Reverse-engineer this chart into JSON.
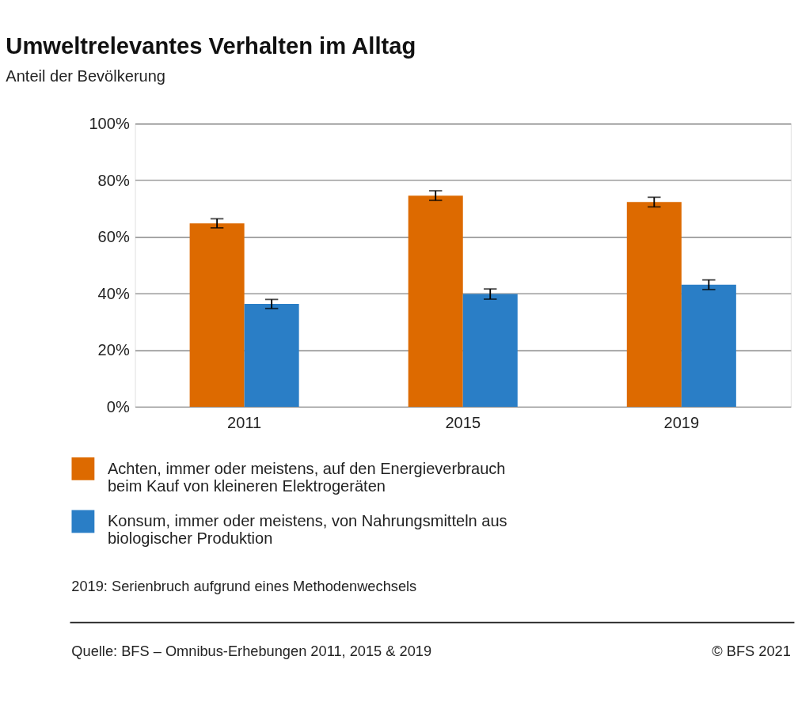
{
  "chart_data": {
    "type": "bar",
    "title": "Umweltrelevantes Verhalten im Alltag",
    "subtitle": "Anteil der Bevölkerung",
    "categories": [
      "2011",
      "2015",
      "2019"
    ],
    "series": [
      {
        "name": "Achten, immer oder meistens, auf den Energieverbrauch beim Kauf von kleineren Elektrogeräten",
        "color": "#dd6a00",
        "values": [
          64.8,
          74.6,
          72.3
        ],
        "errors": [
          1.6,
          1.7,
          1.7
        ]
      },
      {
        "name": "Konsum, immer oder meistens, von Nahrungsmitteln aus biologischer Produktion",
        "color": "#2a7ec6",
        "values": [
          36.3,
          39.8,
          43.1
        ],
        "errors": [
          1.6,
          1.8,
          1.7
        ]
      }
    ],
    "ylim": [
      0,
      100
    ],
    "yticks": [
      {
        "value": 0,
        "label": "0%"
      },
      {
        "value": 20,
        "label": "20%"
      },
      {
        "value": 40,
        "label": "40%"
      },
      {
        "value": 60,
        "label": "60%"
      },
      {
        "value": 80,
        "label": "80%"
      },
      {
        "value": 100,
        "label": "100%"
      }
    ],
    "grid": "y",
    "legend": "bottom",
    "annotations": [
      "2019: Serienbruch aufgrund eines Methodenwechsels",
      "Quelle: BFS – Omnibus-Erhebungen 2011, 2015 & 2019",
      "© BFS 2021"
    ]
  }
}
